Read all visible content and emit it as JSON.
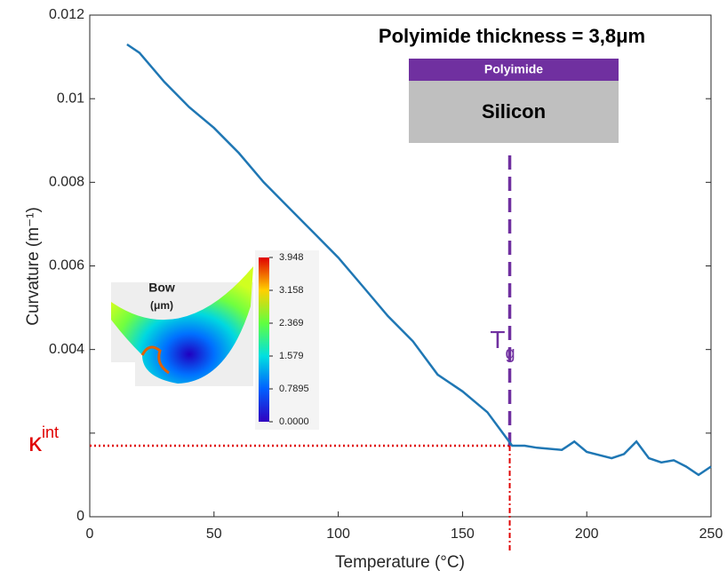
{
  "chart_data": {
    "type": "line",
    "xlabel": "Temperature (°C)",
    "ylabel": "Curvature (m⁻¹)",
    "x": [
      15,
      20,
      30,
      40,
      50,
      60,
      70,
      80,
      90,
      100,
      110,
      120,
      130,
      140,
      150,
      160,
      165,
      170,
      175,
      180,
      190,
      195,
      200,
      210,
      215,
      220,
      225,
      230,
      235,
      240,
      245,
      250
    ],
    "values": [
      0.0113,
      0.0111,
      0.0104,
      0.0098,
      0.0093,
      0.0087,
      0.008,
      0.0074,
      0.0068,
      0.0062,
      0.0055,
      0.0048,
      0.0042,
      0.0034,
      0.003,
      0.0025,
      0.0021,
      0.0017,
      0.0017,
      0.00165,
      0.0016,
      0.0018,
      0.00155,
      0.0014,
      0.0015,
      0.0018,
      0.0014,
      0.0013,
      0.00135,
      0.0012,
      0.001,
      0.0012
    ],
    "color": "#1f77b4",
    "xlim": [
      0,
      250
    ],
    "xticks": [
      0,
      50,
      100,
      150,
      200,
      250
    ],
    "ylim": [
      0,
      0.012
    ],
    "yticks": [
      0,
      {
        "value": 0.002,
        "label": null
      },
      0.004,
      0.006,
      0.008,
      0.01,
      0.012
    ],
    "annotation": "Polyimide thickness = 3,8μm",
    "layer_top": "Polyimide",
    "layer_bottom": "Silicon",
    "tg": {
      "x": 169,
      "main": "T",
      "sub": "g",
      "color": "#7030a0"
    },
    "kint": {
      "y": 0.0017,
      "main": "κ",
      "sup": "int",
      "color": "#e00000"
    },
    "inset": {
      "title": "Bow",
      "unit": "(μm)",
      "colorbar_labels": [
        "3.948",
        "3.158",
        "2.369",
        "1.579",
        "0.7895",
        "0.0000"
      ]
    }
  }
}
